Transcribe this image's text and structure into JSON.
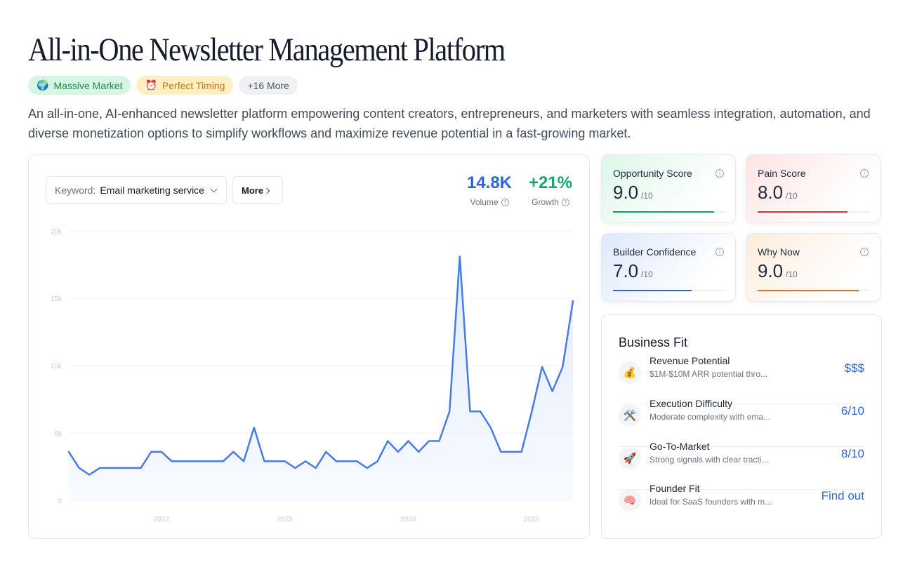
{
  "page": {
    "title": "All-in-One Newsletter Management Platform",
    "tags": [
      {
        "icon": "🌍",
        "label": "Massive Market"
      },
      {
        "icon": "⏰",
        "label": "Perfect Timing"
      },
      {
        "label": "+16 More"
      }
    ],
    "description": "An all-in-one, AI-enhanced newsletter platform empowering content creators, entrepreneurs, and marketers with seamless integration, automation, and diverse monetization options to simplify workflows and maximize revenue potential in a fast-growing market."
  },
  "keyword_panel": {
    "keyword_label": "Keyword:",
    "keyword_value": "Email marketing service",
    "more_label": "More",
    "volume": {
      "value": "14.8K",
      "label": "Volume"
    },
    "growth": {
      "value": "+21%",
      "label": "Growth"
    }
  },
  "chart_data": {
    "type": "area",
    "series": [
      {
        "values": [
          3600,
          2400,
          1900,
          2400,
          2400,
          2400,
          2400,
          2400,
          3600,
          3600,
          2900,
          2900,
          2900,
          2900,
          2900,
          2900,
          3600,
          2900,
          5400,
          2900,
          2900,
          2900,
          2400,
          2900,
          2400,
          3600,
          2900,
          2900,
          2900,
          2400,
          2900,
          4400,
          3600,
          4400,
          3600,
          4400,
          4400,
          6600,
          18100,
          6600,
          6600,
          5400,
          3600,
          3600,
          3600,
          6600,
          9900,
          8100,
          9900,
          14800
        ]
      }
    ],
    "x_start": "2021-04",
    "x_end": "2025-05",
    "x_ticks": [
      "2022",
      "2023",
      "2024",
      "2025"
    ],
    "y_ticks": [
      "0",
      "5k",
      "10k",
      "15k",
      "20k"
    ],
    "ylim": [
      0,
      20000
    ],
    "grid": true,
    "line_color": "#4a7ae6",
    "fill_color": "#e2ecfd"
  },
  "scores": [
    {
      "label": "Opportunity Score",
      "value": "9.0",
      "max": "/10",
      "fraction": 0.9
    },
    {
      "label": "Pain Score",
      "value": "8.0",
      "max": "/10",
      "fraction": 0.8
    },
    {
      "label": "Builder Confidence",
      "value": "7.0",
      "max": "/10",
      "fraction": 0.7
    },
    {
      "label": "Why Now",
      "value": "9.0",
      "max": "/10",
      "fraction": 0.9
    }
  ],
  "business_fit": {
    "title": "Business Fit",
    "rows": [
      {
        "icon": "💰",
        "name": "Revenue Potential",
        "desc": "$1M-$10M ARR potential thro...",
        "value": "$$$"
      },
      {
        "icon": "🛠️",
        "name": "Execution Difficulty",
        "desc": "Moderate complexity with ema...",
        "value": "6/10"
      },
      {
        "icon": "🚀",
        "name": "Go-To-Market",
        "desc": "Strong signals with clear tracti...",
        "value": "8/10"
      },
      {
        "icon": "🧠",
        "name": "Founder Fit",
        "desc": "Ideal for SaaS founders with m...",
        "value": "Find out"
      }
    ]
  }
}
